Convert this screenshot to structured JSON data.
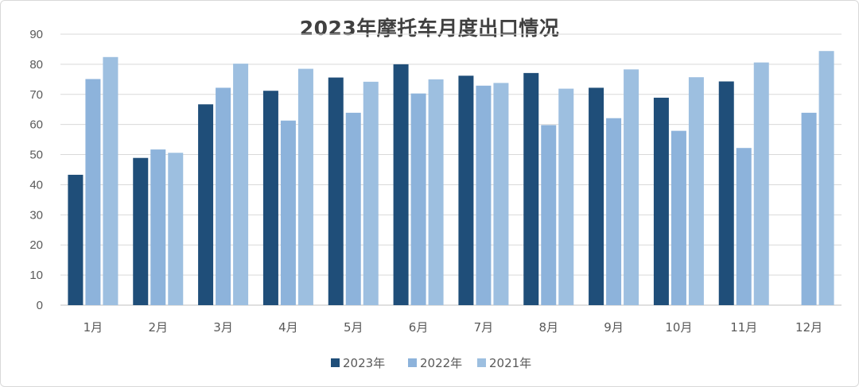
{
  "chart_data": {
    "type": "bar",
    "title": "2023年摩托车月度出口情况",
    "xlabel": "",
    "ylabel": "",
    "ylim": [
      0,
      90
    ],
    "yticks": [
      0,
      10,
      20,
      30,
      40,
      50,
      60,
      70,
      80,
      90
    ],
    "grid": true,
    "legend_position": "bottom",
    "categories": [
      "1月",
      "2月",
      "3月",
      "4月",
      "5月",
      "6月",
      "7月",
      "8月",
      "9月",
      "10月",
      "11月",
      "12月"
    ],
    "series": [
      {
        "name": "2023年",
        "color": "#1f4e79",
        "values": [
          43.3,
          48.9,
          66.7,
          71.2,
          75.6,
          80.0,
          76.2,
          77.1,
          72.2,
          68.9,
          74.3,
          null
        ]
      },
      {
        "name": "2022年",
        "color": "#8db3db",
        "values": [
          75.1,
          51.7,
          72.2,
          61.3,
          63.9,
          70.3,
          72.9,
          59.8,
          62.1,
          57.9,
          52.2,
          63.9
        ]
      },
      {
        "name": "2021年",
        "color": "#9dbfe0",
        "values": [
          82.4,
          50.6,
          80.2,
          78.5,
          74.2,
          75.0,
          73.8,
          71.9,
          78.3,
          75.7,
          80.6,
          84.4
        ]
      }
    ]
  }
}
